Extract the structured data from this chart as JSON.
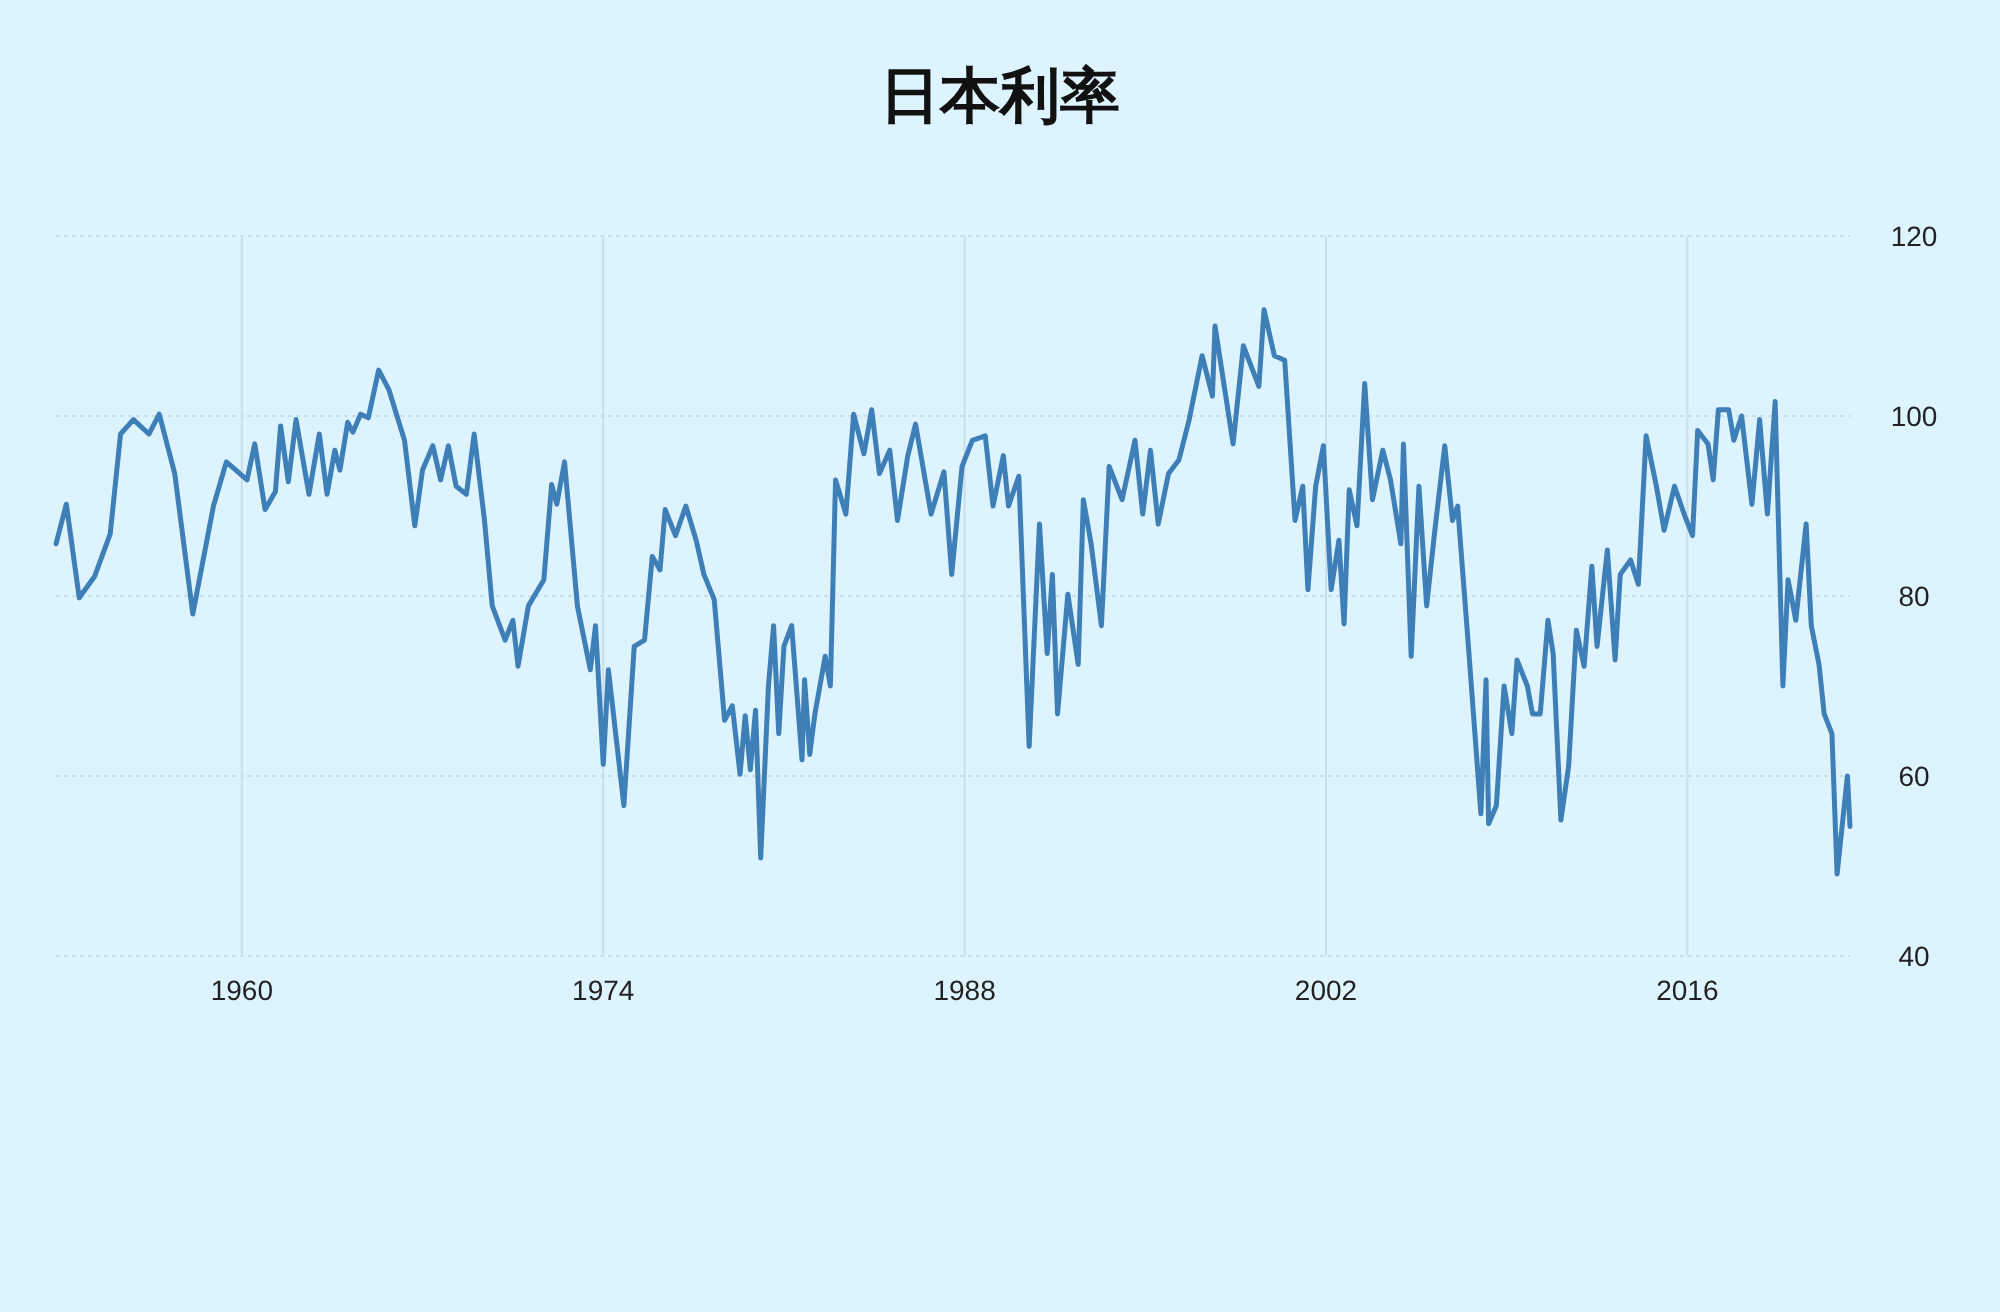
{
  "chart_data": {
    "type": "line",
    "title": "日本利率",
    "x": [
      1952.8,
      1953.2,
      1953.7,
      1954.3,
      1954.9,
      1955.3,
      1955.8,
      1956.4,
      1956.8,
      1957.4,
      1958.1,
      1958.9,
      1959.4,
      1960.2,
      1960.5,
      1960.9,
      1961.3,
      1961.5,
      1961.8,
      1962.1,
      1962.6,
      1963.0,
      1963.3,
      1963.6,
      1963.8,
      1964.1,
      1964.3,
      1964.6,
      1964.9,
      1965.3,
      1965.7,
      1966.3,
      1966.7,
      1967.0,
      1967.4,
      1967.7,
      1968.0,
      1968.3,
      1968.7,
      1969.0,
      1969.4,
      1969.7,
      1970.2,
      1970.5,
      1970.7,
      1971.1,
      1971.7,
      1972.0,
      1972.2,
      1972.5,
      1973.0,
      1973.5,
      1973.7,
      1974.0,
      1974.2,
      1974.8,
      1975.2,
      1975.6,
      1975.9,
      1976.2,
      1976.4,
      1976.8,
      1977.2,
      1977.6,
      1977.9,
      1978.3,
      1978.7,
      1979.0,
      1979.3,
      1979.5,
      1979.7,
      1979.9,
      1980.1,
      1980.4,
      1980.6,
      1980.8,
      1981.0,
      1981.3,
      1981.7,
      1981.8,
      1982.0,
      1982.2,
      1982.6,
      1982.8,
      1983.0,
      1983.4,
      1983.7,
      1984.1,
      1984.4,
      1984.7,
      1985.1,
      1985.4,
      1985.8,
      1986.1,
      1986.7,
      1987.2,
      1987.5,
      1987.9,
      1988.3,
      1988.8,
      1989.1,
      1989.5,
      1989.7,
      1990.1,
      1990.5,
      1990.9,
      1991.2,
      1991.4,
      1991.6,
      1992.0,
      1992.4,
      1992.6,
      1992.9,
      1993.3,
      1993.6,
      1994.1,
      1994.6,
      1994.9,
      1995.2,
      1995.5,
      1995.9,
      1996.3,
      1996.7,
      1997.2,
      1997.6,
      1997.7,
      1998.4,
      1998.8,
      1999.4,
      1999.6,
      2000.0,
      2000.4,
      2000.8,
      2001.1,
      2001.3,
      2001.6,
      2001.9,
      2002.2,
      2002.5,
      2002.7,
      2002.9,
      2003.2,
      2003.5,
      2003.8,
      2004.2,
      2004.5,
      2004.9,
      2005.0,
      2005.3,
      2005.6,
      2005.9,
      2006.2,
      2006.6,
      2006.9,
      2007.1,
      2007.5,
      2008.0,
      2008.2,
      2008.3,
      2008.6,
      2008.9,
      2009.2,
      2009.4,
      2009.8,
      2010.0,
      2010.3,
      2010.6,
      2010.8,
      2011.1,
      2011.4,
      2011.7,
      2012.0,
      2012.3,
      2012.5,
      2012.9,
      2013.2,
      2013.4,
      2013.8,
      2014.1,
      2014.4,
      2014.8,
      2015.1,
      2015.5,
      2015.9,
      2016.2,
      2016.4,
      2016.8,
      2017.0,
      2017.2,
      2017.6,
      2017.8,
      2018.1,
      2018.5,
      2018.8,
      2019.1,
      2019.4,
      2019.7,
      2019.9,
      2020.2,
      2020.6,
      2020.8,
      2021.1,
      2021.3,
      2021.6,
      2021.8,
      2022.2,
      2022.3
    ],
    "values": [
      85.8,
      90.2,
      79.8,
      82.2,
      86.9,
      98,
      99.6,
      98,
      100.2,
      93.6,
      78,
      90,
      94.9,
      92.9,
      96.9,
      89.6,
      91.6,
      98.9,
      92.7,
      99.6,
      91.3,
      98,
      91.3,
      96.2,
      94,
      99.3,
      98.2,
      100.2,
      99.8,
      105.1,
      102.9,
      97.3,
      87.8,
      94,
      96.7,
      92.9,
      96.7,
      92.2,
      91.3,
      98,
      88.4,
      78.9,
      75.1,
      77.3,
      72.2,
      78.9,
      81.8,
      92.4,
      90.2,
      94.9,
      78.9,
      71.8,
      76.7,
      61.3,
      71.8,
      56.7,
      74.4,
      75.1,
      84.4,
      82.9,
      89.6,
      86.7,
      90,
      86.2,
      82.4,
      79.6,
      66.2,
      67.8,
      60.2,
      66.7,
      60.7,
      67.3,
      50.9,
      70,
      76.7,
      64.7,
      74.4,
      76.7,
      61.8,
      70.7,
      62.4,
      66.9,
      73.3,
      70,
      92.9,
      89.1,
      100.2,
      95.8,
      100.7,
      93.6,
      96.2,
      88.4,
      95.6,
      99.1,
      89.1,
      93.8,
      82.4,
      94.4,
      97.3,
      97.8,
      90,
      95.6,
      90,
      93.3,
      63.3,
      88,
      73.6,
      82.4,
      66.9,
      80.2,
      72.4,
      90.7,
      85.8,
      76.7,
      94.4,
      90.7,
      97.3,
      89.1,
      96.2,
      88,
      93.6,
      95.1,
      99.6,
      106.7,
      102.2,
      110,
      96.9,
      107.8,
      103.3,
      111.8,
      106.7,
      106.2,
      88.4,
      92.2,
      80.7,
      92.2,
      96.7,
      80.7,
      86.2,
      76.9,
      91.8,
      87.8,
      103.6,
      90.7,
      96.2,
      92.9,
      85.8,
      96.9,
      73.3,
      92.2,
      78.9,
      86.9,
      96.7,
      88.4,
      90,
      75.1,
      55.8,
      70.7,
      54.7,
      56.7,
      70,
      64.7,
      72.9,
      70,
      66.9,
      66.9,
      77.3,
      73.6,
      55.1,
      61.1,
      76.2,
      72.2,
      83.3,
      74.4,
      85.1,
      72.9,
      82.4,
      84,
      81.3,
      97.8,
      92.2,
      87.3,
      92.2,
      88.9,
      86.7,
      98.4,
      96.9,
      92.9,
      100.7,
      100.7,
      97.3,
      100,
      90.2,
      99.6,
      89.1,
      101.6,
      70,
      81.8,
      77.3,
      88,
      76.7,
      72.4,
      66.9,
      64.7,
      49.1,
      60,
      54.4
    ],
    "color": "#3f7fb8",
    "xlim": [
      1952.8,
      2022.3
    ],
    "ylim": [
      40,
      120
    ],
    "xticks": [
      1960,
      1974,
      1988,
      2002,
      2016
    ],
    "yticks": [
      40,
      60,
      80,
      100,
      120
    ],
    "grid": true
  }
}
